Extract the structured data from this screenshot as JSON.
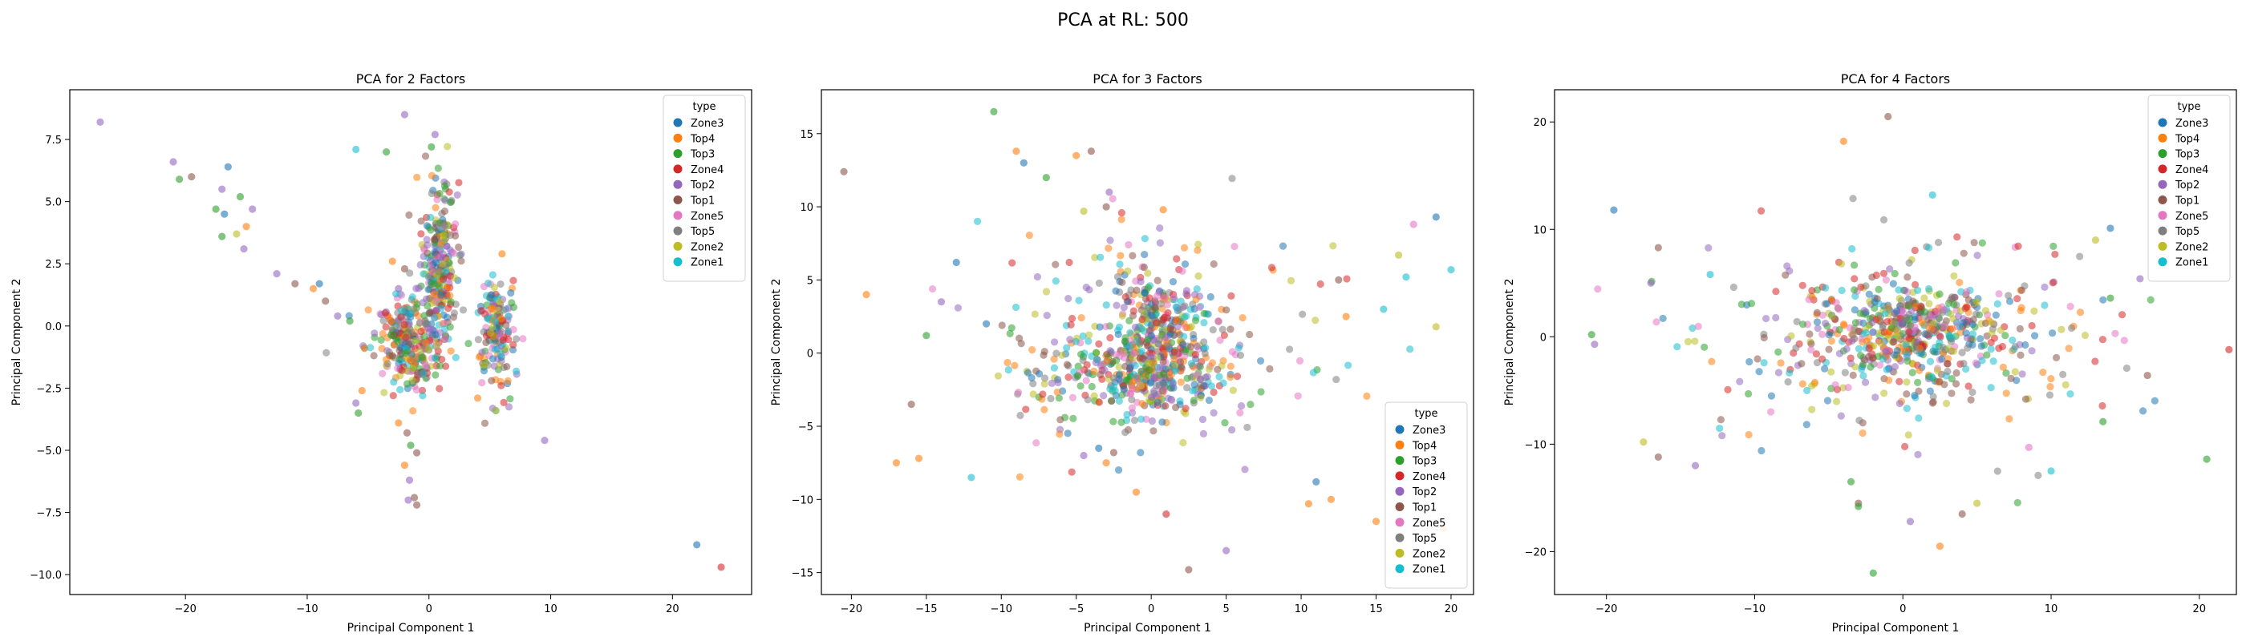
{
  "figure_title": "PCA at RL: 500",
  "legend_title": "type",
  "colors": {
    "Zone3": "#1f77b4",
    "Top4": "#ff7f0e",
    "Top3": "#2ca02c",
    "Zone4": "#d62728",
    "Top2": "#9467bd",
    "Top1": "#8c564b",
    "Zone5": "#e377c2",
    "Top5": "#7f7f7f",
    "Zone2": "#bcbd22",
    "Zone1": "#17becf"
  },
  "chart_data": [
    {
      "type": "scatter",
      "title": "PCA for 2 Factors",
      "xlabel": "Principal Component 1",
      "ylabel": "Principal Component 2",
      "xlim": [
        -29.5,
        26.5
      ],
      "ylim": [
        -10.8,
        9.5
      ],
      "xticks": [
        -20,
        -10,
        0,
        10,
        20
      ],
      "yticks": [
        -10.0,
        -7.5,
        -5.0,
        -2.5,
        0.0,
        2.5,
        5.0,
        7.5
      ],
      "grid": false,
      "legend_position": "top-right",
      "categories": [
        "Zone3",
        "Top4",
        "Top3",
        "Zone4",
        "Top2",
        "Top1",
        "Zone5",
        "Top5",
        "Zone2",
        "Zone1"
      ],
      "points": [
        {
          "x": -27.0,
          "y": 8.2,
          "c": "Top2"
        },
        {
          "x": -21.0,
          "y": 6.6,
          "c": "Top2"
        },
        {
          "x": -20.5,
          "y": 5.9,
          "c": "Top3"
        },
        {
          "x": -19.5,
          "y": 6.0,
          "c": "Top1"
        },
        {
          "x": -16.5,
          "y": 6.4,
          "c": "Zone3"
        },
        {
          "x": -17.0,
          "y": 5.5,
          "c": "Top2"
        },
        {
          "x": -15.5,
          "y": 5.2,
          "c": "Top3"
        },
        {
          "x": -14.5,
          "y": 4.7,
          "c": "Top2"
        },
        {
          "x": -17.5,
          "y": 4.7,
          "c": "Top3"
        },
        {
          "x": -16.8,
          "y": 4.5,
          "c": "Zone3"
        },
        {
          "x": -15.0,
          "y": 4.0,
          "c": "Top4"
        },
        {
          "x": -15.8,
          "y": 3.7,
          "c": "Zone2"
        },
        {
          "x": -17.0,
          "y": 3.6,
          "c": "Top3"
        },
        {
          "x": -15.2,
          "y": 3.1,
          "c": "Top2"
        },
        {
          "x": -12.5,
          "y": 2.1,
          "c": "Top2"
        },
        {
          "x": -11.0,
          "y": 1.7,
          "c": "Top1"
        },
        {
          "x": -9.5,
          "y": 1.5,
          "c": "Top4"
        },
        {
          "x": -9.0,
          "y": 1.7,
          "c": "Zone3"
        },
        {
          "x": -8.5,
          "y": 1.0,
          "c": "Top1"
        },
        {
          "x": -7.5,
          "y": 0.4,
          "c": "Top2"
        },
        {
          "x": -6.5,
          "y": 0.2,
          "c": "Top3"
        },
        {
          "x": -6.0,
          "y": 7.1,
          "c": "Zone1"
        },
        {
          "x": -3.5,
          "y": 7.0,
          "c": "Top3"
        },
        {
          "x": -2.0,
          "y": 8.5,
          "c": "Top2"
        },
        {
          "x": 0.5,
          "y": 7.7,
          "c": "Top2"
        },
        {
          "x": 0.2,
          "y": 7.2,
          "c": "Top3"
        },
        {
          "x": -3.0,
          "y": 2.6,
          "c": "Top4"
        },
        {
          "x": -2.0,
          "y": 2.3,
          "c": "Top1"
        },
        {
          "x": -2.5,
          "y": 1.5,
          "c": "Top2"
        },
        {
          "x": 9.5,
          "y": -4.6,
          "c": "Top2"
        },
        {
          "x": 5.5,
          "y": -3.4,
          "c": "Zone2"
        },
        {
          "x": 4.0,
          "y": -2.9,
          "c": "Top4"
        },
        {
          "x": 6.0,
          "y": 2.9,
          "c": "Top4"
        },
        {
          "x": -5.5,
          "y": -2.6,
          "c": "Top4"
        },
        {
          "x": -6.0,
          "y": -3.1,
          "c": "Top2"
        },
        {
          "x": -5.8,
          "y": -3.5,
          "c": "Top3"
        },
        {
          "x": 22.0,
          "y": -8.8,
          "c": "Zone3"
        },
        {
          "x": 24.0,
          "y": -9.7,
          "c": "Zone4"
        },
        {
          "x": -2.5,
          "y": -3.9,
          "c": "Top4"
        },
        {
          "x": -1.8,
          "y": -4.3,
          "c": "Top1"
        },
        {
          "x": -1.5,
          "y": -4.8,
          "c": "Top3"
        },
        {
          "x": -1.0,
          "y": -5.1,
          "c": "Top1"
        },
        {
          "x": -2.0,
          "y": -5.6,
          "c": "Top4"
        },
        {
          "x": -1.6,
          "y": -6.2,
          "c": "Top2"
        },
        {
          "x": -1.2,
          "y": -6.9,
          "c": "Top1"
        },
        {
          "x": -1.0,
          "y": -7.2,
          "c": "Top1"
        },
        {
          "x": -1.7,
          "y": -7.0,
          "c": "Top2"
        }
      ],
      "clusters": [
        {
          "cx": 0.8,
          "cy": 2.5,
          "sx": 0.7,
          "sy": 1.7,
          "n": 260
        },
        {
          "cx": -2.0,
          "cy": -0.4,
          "sx": 1.6,
          "sy": 0.8,
          "n": 230
        },
        {
          "cx": 5.5,
          "cy": -0.2,
          "sx": 0.8,
          "sy": 1.1,
          "n": 160
        },
        {
          "cx": -1.2,
          "cy": -1.8,
          "sx": 0.8,
          "sy": 0.5,
          "n": 50
        }
      ]
    },
    {
      "type": "scatter",
      "title": "PCA for 3 Factors",
      "xlabel": "Principal Component 1",
      "ylabel": "Principal Component 2",
      "xlim": [
        -22,
        21.5
      ],
      "ylim": [
        -16.5,
        18
      ],
      "xticks": [
        -20,
        -15,
        -10,
        -5,
        0,
        5,
        10,
        15,
        20
      ],
      "yticks": [
        -15,
        -10,
        -5,
        0,
        5,
        10,
        15
      ],
      "grid": false,
      "legend_position": "bottom-right",
      "categories": [
        "Zone3",
        "Top4",
        "Top3",
        "Zone4",
        "Top2",
        "Top1",
        "Zone5",
        "Top5",
        "Zone2",
        "Zone1"
      ],
      "points": [
        {
          "x": -20.5,
          "y": 12.4,
          "c": "Top1"
        },
        {
          "x": -10.5,
          "y": 16.5,
          "c": "Top3"
        },
        {
          "x": -9.0,
          "y": 13.8,
          "c": "Top4"
        },
        {
          "x": -8.5,
          "y": 13.0,
          "c": "Zone3"
        },
        {
          "x": -7.0,
          "y": 12.0,
          "c": "Top3"
        },
        {
          "x": -5.0,
          "y": 13.5,
          "c": "Top4"
        },
        {
          "x": -4.0,
          "y": 13.8,
          "c": "Top1"
        },
        {
          "x": -3.0,
          "y": 10.0,
          "c": "Top1"
        },
        {
          "x": -4.5,
          "y": 9.7,
          "c": "Zone2"
        },
        {
          "x": -2.8,
          "y": 11.0,
          "c": "Top2"
        },
        {
          "x": 0.8,
          "y": 9.8,
          "c": "Top4"
        },
        {
          "x": -19.0,
          "y": 4.0,
          "c": "Top4"
        },
        {
          "x": -17.0,
          "y": -7.5,
          "c": "Top4"
        },
        {
          "x": -15.5,
          "y": -7.2,
          "c": "Top4"
        },
        {
          "x": -15.0,
          "y": 1.2,
          "c": "Top3"
        },
        {
          "x": -16.0,
          "y": -3.5,
          "c": "Top1"
        },
        {
          "x": -13.0,
          "y": 6.2,
          "c": "Zone3"
        },
        {
          "x": -12.0,
          "y": -8.5,
          "c": "Zone1"
        },
        {
          "x": -14.0,
          "y": 3.5,
          "c": "Top2"
        },
        {
          "x": -11.0,
          "y": 2.0,
          "c": "Zone3"
        },
        {
          "x": 19.0,
          "y": 9.3,
          "c": "Zone3"
        },
        {
          "x": 17.5,
          "y": 8.8,
          "c": "Zone5"
        },
        {
          "x": 20.0,
          "y": 5.7,
          "c": "Zone1"
        },
        {
          "x": 16.5,
          "y": 6.7,
          "c": "Zone2"
        },
        {
          "x": 15.5,
          "y": 3.0,
          "c": "Zone1"
        },
        {
          "x": 13.0,
          "y": 2.5,
          "c": "Top4"
        },
        {
          "x": 12.5,
          "y": 5.0,
          "c": "Top1"
        },
        {
          "x": 17.0,
          "y": 5.2,
          "c": "Zone1"
        },
        {
          "x": 19.0,
          "y": 1.8,
          "c": "Zone2"
        },
        {
          "x": 15.0,
          "y": -11.5,
          "c": "Top4"
        },
        {
          "x": 19.5,
          "y": -12.0,
          "c": "Top4"
        },
        {
          "x": 11.0,
          "y": -8.8,
          "c": "Zone3"
        },
        {
          "x": 12.0,
          "y": -10.0,
          "c": "Top4"
        },
        {
          "x": 10.5,
          "y": -10.3,
          "c": "Top4"
        },
        {
          "x": 2.5,
          "y": -14.8,
          "c": "Top1"
        },
        {
          "x": 5.0,
          "y": -13.5,
          "c": "Top2"
        },
        {
          "x": -1.0,
          "y": -9.5,
          "c": "Top4"
        },
        {
          "x": 1.0,
          "y": -11.0,
          "c": "Zone4"
        },
        {
          "x": -3.0,
          "y": -7.5,
          "c": "Top4"
        },
        {
          "x": -2.5,
          "y": -6.8,
          "c": "Top1"
        },
        {
          "x": -3.5,
          "y": -6.5,
          "c": "Zone3"
        },
        {
          "x": -4.5,
          "y": -7.0,
          "c": "Top2"
        }
      ],
      "clusters": [
        {
          "cx": 0.5,
          "cy": 1.5,
          "sx": 1.6,
          "sy": 2.3,
          "n": 260
        },
        {
          "cx": -0.5,
          "cy": -1.3,
          "sx": 2.8,
          "sy": 1.3,
          "n": 280
        },
        {
          "cx": 0,
          "cy": 0,
          "sx": 5.5,
          "sy": 4.2,
          "n": 230
        }
      ]
    },
    {
      "type": "scatter",
      "title": "PCA for 4 Factors",
      "xlabel": "Principal Component 1",
      "ylabel": "Principal Component 2",
      "xlim": [
        -23.5,
        22.5
      ],
      "ylim": [
        -24,
        23
      ],
      "xticks": [
        -20,
        -10,
        0,
        10,
        20
      ],
      "yticks": [
        -20,
        -10,
        0,
        10,
        20
      ],
      "grid": false,
      "legend_position": "top-right",
      "categories": [
        "Zone3",
        "Top4",
        "Top3",
        "Zone4",
        "Top2",
        "Top1",
        "Zone5",
        "Top5",
        "Zone2",
        "Zone1"
      ],
      "points": [
        {
          "x": -1.0,
          "y": 20.5,
          "c": "Top1"
        },
        {
          "x": -19.5,
          "y": 11.8,
          "c": "Zone3"
        },
        {
          "x": -4.0,
          "y": 18.2,
          "c": "Top4"
        },
        {
          "x": 2.0,
          "y": 13.2,
          "c": "Zone1"
        },
        {
          "x": 14.0,
          "y": 10.1,
          "c": "Zone3"
        },
        {
          "x": 16.0,
          "y": 5.4,
          "c": "Top2"
        },
        {
          "x": 13.0,
          "y": 9.0,
          "c": "Zone2"
        },
        {
          "x": 22.0,
          "y": -1.2,
          "c": "Zone4"
        },
        {
          "x": 20.5,
          "y": -11.4,
          "c": "Top3"
        },
        {
          "x": 16.5,
          "y": -3.6,
          "c": "Top1"
        },
        {
          "x": 14.0,
          "y": 3.6,
          "c": "Top3"
        },
        {
          "x": -21.0,
          "y": 0.2,
          "c": "Top3"
        },
        {
          "x": -20.8,
          "y": -0.7,
          "c": "Top2"
        },
        {
          "x": -17.5,
          "y": -9.8,
          "c": "Zone2"
        },
        {
          "x": -16.5,
          "y": -11.2,
          "c": "Top1"
        },
        {
          "x": -14.0,
          "y": -12.0,
          "c": "Top2"
        },
        {
          "x": -17.0,
          "y": 5.0,
          "c": "Top2"
        },
        {
          "x": -16.5,
          "y": 8.3,
          "c": "Top1"
        },
        {
          "x": -13.0,
          "y": 5.8,
          "c": "Zone1"
        },
        {
          "x": -2.0,
          "y": -22.0,
          "c": "Top3"
        },
        {
          "x": 2.5,
          "y": -19.5,
          "c": "Top4"
        },
        {
          "x": 4.0,
          "y": -16.5,
          "c": "Top1"
        },
        {
          "x": 5.0,
          "y": -15.5,
          "c": "Zone2"
        },
        {
          "x": -3.0,
          "y": -15.5,
          "c": "Top1"
        },
        {
          "x": -3.0,
          "y": -15.8,
          "c": "Top3"
        },
        {
          "x": 0.5,
          "y": -17.2,
          "c": "Top2"
        },
        {
          "x": -3.5,
          "y": -13.5,
          "c": "Top3"
        },
        {
          "x": 10.0,
          "y": -12.5,
          "c": "Zone1"
        },
        {
          "x": 8.5,
          "y": -10.3,
          "c": "Zone5"
        },
        {
          "x": 13.5,
          "y": -7.9,
          "c": "Top3"
        }
      ],
      "clusters": [
        {
          "cx": 0.5,
          "cy": 0.5,
          "sx": 3.0,
          "sy": 2.2,
          "n": 420
        },
        {
          "cx": 0,
          "cy": 0,
          "sx": 7.0,
          "sy": 5.0,
          "n": 300
        }
      ]
    }
  ]
}
